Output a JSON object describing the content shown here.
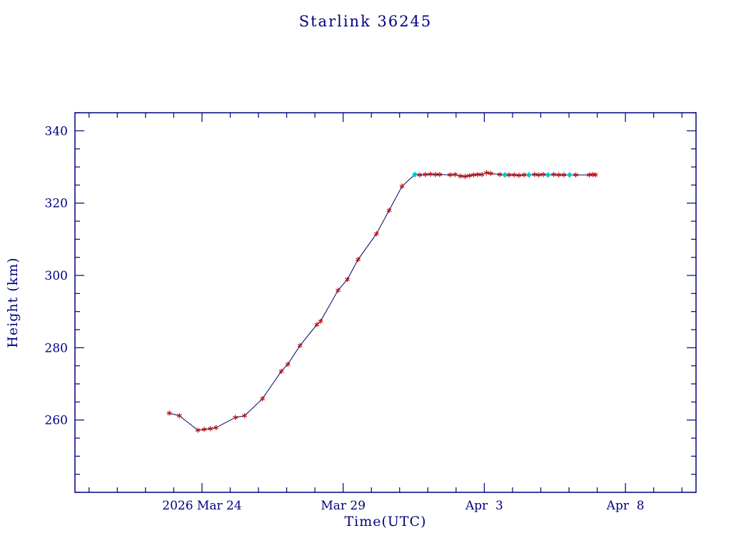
{
  "colors": {
    "background": "#ffffff",
    "axis": "#000080",
    "text": "#000080"
  },
  "chart_data": {
    "type": "line",
    "title": "Starlink 36245",
    "xlabel": "Time(UTC)",
    "ylabel": "Height (km)",
    "x_unit": "days relative to 2026 Mar 24 00:00 UTC",
    "xlim": [
      -4.5,
      17.5
    ],
    "ylim": [
      240,
      345
    ],
    "x_major_ticks": [
      {
        "value": 0,
        "label": "2026 Mar 24"
      },
      {
        "value": 5,
        "label": "Mar 29"
      },
      {
        "value": 10,
        "label": "Apr  3"
      },
      {
        "value": 15,
        "label": "Apr  8"
      }
    ],
    "x_minor_step": 1,
    "y_major_ticks": [
      {
        "value": 260,
        "label": "260"
      },
      {
        "value": 280,
        "label": "280"
      },
      {
        "value": 300,
        "label": "300"
      },
      {
        "value": 320,
        "label": "320"
      },
      {
        "value": 340,
        "label": "340"
      }
    ],
    "y_minor_step": 5,
    "grid": false,
    "legend": false,
    "line_color": "#000060",
    "markers": {
      "r": {
        "shape": "asterisk",
        "color": "#c01010"
      },
      "c": {
        "shape": "diamond",
        "color": "#00c8c8"
      }
    },
    "points_format": [
      "day",
      "height_km",
      "marker"
    ],
    "points": [
      [
        -1.16,
        261.9,
        "r"
      ],
      [
        -0.8,
        261.2,
        "r"
      ],
      [
        -0.15,
        257.2,
        "r"
      ],
      [
        0.08,
        257.4,
        "r"
      ],
      [
        0.3,
        257.6,
        "r"
      ],
      [
        0.5,
        257.9,
        "r"
      ],
      [
        1.18,
        260.7,
        "r"
      ],
      [
        1.51,
        261.2,
        "r"
      ],
      [
        2.14,
        265.9,
        "r"
      ],
      [
        2.81,
        273.5,
        "r"
      ],
      [
        3.04,
        275.4,
        "r"
      ],
      [
        3.47,
        280.6,
        "r"
      ],
      [
        4.07,
        286.4,
        "r"
      ],
      [
        4.2,
        287.3,
        "r"
      ],
      [
        4.82,
        295.9,
        "r"
      ],
      [
        5.15,
        298.9,
        "r"
      ],
      [
        5.53,
        304.4,
        "r"
      ],
      [
        6.18,
        311.5,
        "r"
      ],
      [
        6.63,
        318.0,
        "r"
      ],
      [
        7.09,
        324.7,
        "r"
      ],
      [
        7.54,
        327.9,
        "c"
      ],
      [
        7.71,
        327.8,
        "r"
      ],
      [
        7.91,
        327.9,
        "r"
      ],
      [
        8.09,
        328.0,
        "r"
      ],
      [
        8.27,
        327.9,
        "r"
      ],
      [
        8.42,
        327.9,
        "r"
      ],
      [
        8.79,
        327.8,
        "r"
      ],
      [
        8.97,
        327.9,
        "r"
      ],
      [
        9.15,
        327.5,
        "r"
      ],
      [
        9.32,
        327.4,
        "r"
      ],
      [
        9.47,
        327.6,
        "r"
      ],
      [
        9.62,
        327.8,
        "r"
      ],
      [
        9.77,
        327.9,
        "r"
      ],
      [
        9.92,
        327.9,
        "r"
      ],
      [
        10.08,
        328.4,
        "r"
      ],
      [
        10.23,
        328.2,
        "r"
      ],
      [
        10.55,
        327.9,
        "r"
      ],
      [
        10.73,
        327.8,
        "c"
      ],
      [
        10.88,
        327.8,
        "r"
      ],
      [
        11.06,
        327.8,
        "r"
      ],
      [
        11.23,
        327.7,
        "r"
      ],
      [
        11.41,
        327.8,
        "r"
      ],
      [
        11.58,
        327.8,
        "c"
      ],
      [
        11.78,
        327.9,
        "r"
      ],
      [
        11.93,
        327.8,
        "r"
      ],
      [
        12.09,
        327.9,
        "r"
      ],
      [
        12.26,
        327.8,
        "c"
      ],
      [
        12.46,
        327.9,
        "r"
      ],
      [
        12.64,
        327.8,
        "r"
      ],
      [
        12.82,
        327.8,
        "r"
      ],
      [
        13.02,
        327.8,
        "c"
      ],
      [
        13.24,
        327.8,
        "r"
      ],
      [
        13.72,
        327.8,
        "r"
      ],
      [
        13.84,
        327.9,
        "r"
      ],
      [
        13.94,
        327.8,
        "r"
      ]
    ]
  }
}
